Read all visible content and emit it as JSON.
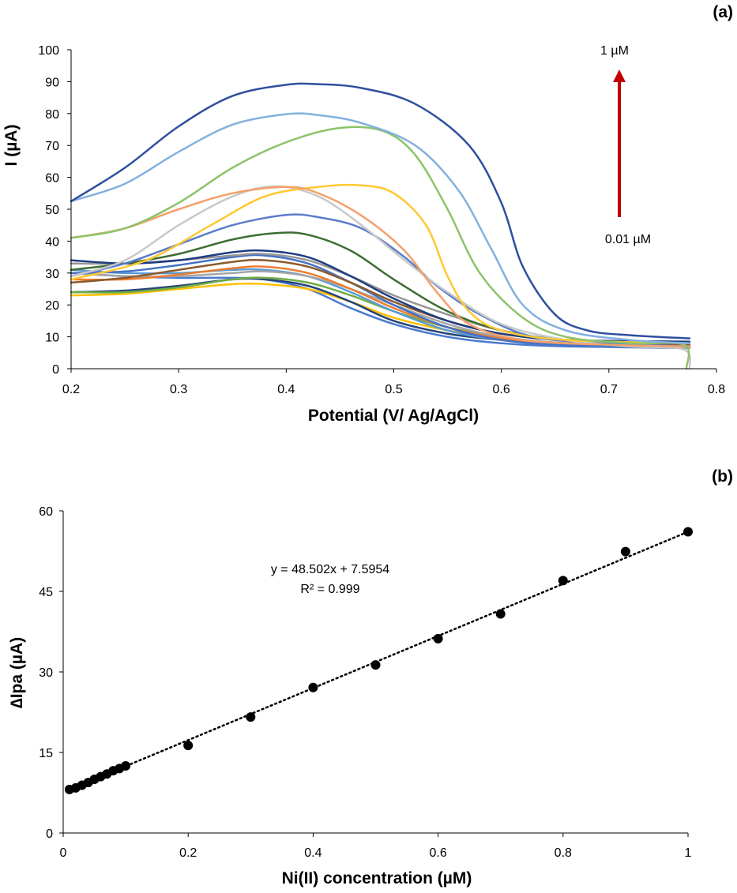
{
  "chart_data": [
    {
      "type": "line",
      "panel_label": "(a)",
      "xlabel": "Potential (V/ Ag/AgCl)",
      "ylabel": "I (µA)",
      "xlim": [
        0.2,
        0.8
      ],
      "ylim": [
        0,
        100
      ],
      "x_ticks": [
        "0.2",
        "0.3",
        "0.4",
        "0.5",
        "0.6",
        "0.7",
        "0.8"
      ],
      "y_ticks": [
        "0",
        "10",
        "20",
        "30",
        "40",
        "50",
        "60",
        "70",
        "80",
        "90",
        "100"
      ],
      "grid": false,
      "legend": "none",
      "arrow": {
        "color": "#c00000",
        "top_label": "1 µM",
        "bottom_label": "0.01 µM",
        "direction": "up"
      },
      "series": [
        {
          "color": "#2f4f9e",
          "points": [
            [
              0.2,
              52.5
            ],
            [
              0.25,
              63
            ],
            [
              0.3,
              76
            ],
            [
              0.35,
              85.5
            ],
            [
              0.4,
              89
            ],
            [
              0.43,
              89.2
            ],
            [
              0.47,
              88
            ],
            [
              0.52,
              83
            ],
            [
              0.57,
              70
            ],
            [
              0.6,
              52
            ],
            [
              0.62,
              32
            ],
            [
              0.65,
              17
            ],
            [
              0.68,
              12
            ],
            [
              0.72,
              10.5
            ],
            [
              0.775,
              9.5
            ]
          ]
        },
        {
          "color": "#82b1e0",
          "points": [
            [
              0.2,
              52.5
            ],
            [
              0.25,
              58
            ],
            [
              0.3,
              68
            ],
            [
              0.35,
              76.5
            ],
            [
              0.4,
              79.8
            ],
            [
              0.43,
              79.5
            ],
            [
              0.47,
              77
            ],
            [
              0.52,
              70
            ],
            [
              0.56,
              56
            ],
            [
              0.59,
              38
            ],
            [
              0.62,
              20
            ],
            [
              0.66,
              12
            ],
            [
              0.72,
              9
            ],
            [
              0.775,
              8
            ]
          ]
        },
        {
          "color": "#8cc36a",
          "points": [
            [
              0.2,
              41
            ],
            [
              0.25,
              44
            ],
            [
              0.3,
              52
            ],
            [
              0.35,
              63
            ],
            [
              0.4,
              71
            ],
            [
              0.45,
              75.5
            ],
            [
              0.49,
              74.5
            ],
            [
              0.52,
              67
            ],
            [
              0.55,
              50
            ],
            [
              0.58,
              30
            ],
            [
              0.62,
              16
            ],
            [
              0.66,
              10
            ],
            [
              0.72,
              8
            ],
            [
              0.77,
              7.5
            ],
            [
              0.772,
              0
            ]
          ]
        },
        {
          "color": "#f4a06a",
          "points": [
            [
              0.2,
              41
            ],
            [
              0.25,
              44
            ],
            [
              0.3,
              50
            ],
            [
              0.35,
              55
            ],
            [
              0.4,
              57
            ],
            [
              0.43,
              55
            ],
            [
              0.47,
              48
            ],
            [
              0.51,
              37
            ],
            [
              0.54,
              24
            ],
            [
              0.57,
              14
            ],
            [
              0.62,
              9
            ],
            [
              0.7,
              7.5
            ],
            [
              0.775,
              7
            ]
          ]
        },
        {
          "color": "#ffc832",
          "points": [
            [
              0.2,
              28
            ],
            [
              0.27,
              34
            ],
            [
              0.33,
              45
            ],
            [
              0.38,
              54
            ],
            [
              0.43,
              57
            ],
            [
              0.47,
              57.5
            ],
            [
              0.5,
              55
            ],
            [
              0.53,
              45
            ],
            [
              0.55,
              29
            ],
            [
              0.57,
              18
            ],
            [
              0.6,
              12
            ],
            [
              0.66,
              9
            ],
            [
              0.775,
              8
            ]
          ]
        },
        {
          "color": "#c8c8c8",
          "points": [
            [
              0.2,
              29
            ],
            [
              0.25,
              34
            ],
            [
              0.3,
              45
            ],
            [
              0.35,
              54
            ],
            [
              0.39,
              57.2
            ],
            [
              0.43,
              54
            ],
            [
              0.47,
              45
            ],
            [
              0.51,
              34
            ],
            [
              0.55,
              24
            ],
            [
              0.6,
              14
            ],
            [
              0.66,
              9
            ],
            [
              0.72,
              7
            ],
            [
              0.77,
              6
            ],
            [
              0.775,
              0
            ]
          ]
        },
        {
          "color": "#5b7dc8",
          "points": [
            [
              0.2,
              29
            ],
            [
              0.25,
              33
            ],
            [
              0.3,
              39
            ],
            [
              0.35,
              45
            ],
            [
              0.4,
              48.2
            ],
            [
              0.43,
              47.5
            ],
            [
              0.47,
              44
            ],
            [
              0.51,
              35
            ],
            [
              0.54,
              26
            ],
            [
              0.58,
              17
            ],
            [
              0.63,
              10
            ],
            [
              0.7,
              8
            ],
            [
              0.775,
              7
            ]
          ]
        },
        {
          "color": "#3c6e32",
          "points": [
            [
              0.2,
              31
            ],
            [
              0.25,
              33
            ],
            [
              0.3,
              36
            ],
            [
              0.35,
              40.5
            ],
            [
              0.39,
              42.5
            ],
            [
              0.42,
              42
            ],
            [
              0.46,
              37
            ],
            [
              0.5,
              28
            ],
            [
              0.55,
              18
            ],
            [
              0.6,
              12
            ],
            [
              0.66,
              9
            ],
            [
              0.775,
              8
            ]
          ]
        },
        {
          "color": "#1e3c82",
          "points": [
            [
              0.2,
              34
            ],
            [
              0.25,
              33
            ],
            [
              0.3,
              34
            ],
            [
              0.35,
              36.5
            ],
            [
              0.38,
              37
            ],
            [
              0.42,
              35
            ],
            [
              0.46,
              29
            ],
            [
              0.5,
              22
            ],
            [
              0.55,
              15
            ],
            [
              0.6,
              11
            ],
            [
              0.66,
              9
            ],
            [
              0.775,
              8.5
            ]
          ]
        },
        {
          "color": "#8b5a2b",
          "points": [
            [
              0.2,
              27
            ],
            [
              0.25,
              28.5
            ],
            [
              0.3,
              31
            ],
            [
              0.35,
              33.5
            ],
            [
              0.38,
              34
            ],
            [
              0.42,
              32
            ],
            [
              0.46,
              27
            ],
            [
              0.5,
              21
            ],
            [
              0.55,
              15
            ],
            [
              0.6,
              11
            ],
            [
              0.66,
              9
            ],
            [
              0.775,
              7.5
            ]
          ]
        },
        {
          "color": "#969696",
          "points": [
            [
              0.2,
              33
            ],
            [
              0.25,
              33
            ],
            [
              0.3,
              34
            ],
            [
              0.35,
              35.5
            ],
            [
              0.38,
              36
            ],
            [
              0.42,
              34
            ],
            [
              0.46,
              29
            ],
            [
              0.5,
              23
            ],
            [
              0.55,
              17
            ],
            [
              0.6,
              12
            ],
            [
              0.66,
              9
            ],
            [
              0.775,
              7
            ]
          ]
        },
        {
          "color": "#4472c4",
          "points": [
            [
              0.2,
              30
            ],
            [
              0.25,
              30.5
            ],
            [
              0.3,
              32.5
            ],
            [
              0.35,
              35
            ],
            [
              0.38,
              35.5
            ],
            [
              0.42,
              33
            ],
            [
              0.46,
              27
            ],
            [
              0.5,
              20
            ],
            [
              0.55,
              13
            ],
            [
              0.6,
              9
            ],
            [
              0.66,
              7.5
            ],
            [
              0.775,
              7
            ]
          ]
        },
        {
          "color": "#ed7d31",
          "points": [
            [
              0.2,
              28
            ],
            [
              0.25,
              28
            ],
            [
              0.3,
              29.5
            ],
            [
              0.35,
              31.5
            ],
            [
              0.38,
              32
            ],
            [
              0.42,
              30
            ],
            [
              0.46,
              25
            ],
            [
              0.5,
              19
            ],
            [
              0.55,
              13
            ],
            [
              0.6,
              9.5
            ],
            [
              0.66,
              8
            ],
            [
              0.775,
              7
            ]
          ]
        },
        {
          "color": "#a5a5a5",
          "points": [
            [
              0.2,
              30
            ],
            [
              0.25,
              29
            ],
            [
              0.3,
              29
            ],
            [
              0.35,
              30
            ],
            [
              0.38,
              30.5
            ],
            [
              0.42,
              29
            ],
            [
              0.46,
              25
            ],
            [
              0.5,
              20
            ],
            [
              0.55,
              14
            ],
            [
              0.6,
              10
            ],
            [
              0.66,
              8
            ],
            [
              0.775,
              6.5
            ]
          ]
        },
        {
          "color": "#5b9bd5",
          "points": [
            [
              0.2,
              31
            ],
            [
              0.25,
              30
            ],
            [
              0.3,
              30
            ],
            [
              0.35,
              31
            ],
            [
              0.38,
              31
            ],
            [
              0.42,
              29
            ],
            [
              0.46,
              24
            ],
            [
              0.5,
              18
            ],
            [
              0.55,
              12
            ],
            [
              0.6,
              9
            ],
            [
              0.66,
              7.5
            ],
            [
              0.775,
              6.5
            ]
          ]
        },
        {
          "color": "#70ad47",
          "points": [
            [
              0.2,
              24
            ],
            [
              0.25,
              24
            ],
            [
              0.3,
              25.5
            ],
            [
              0.35,
              28
            ],
            [
              0.38,
              28.5
            ],
            [
              0.42,
              27
            ],
            [
              0.46,
              23
            ],
            [
              0.5,
              18
            ],
            [
              0.55,
              13
            ],
            [
              0.6,
              10
            ],
            [
              0.66,
              8
            ],
            [
              0.775,
              7
            ]
          ]
        },
        {
          "color": "#264478",
          "points": [
            [
              0.2,
              24
            ],
            [
              0.25,
              24.5
            ],
            [
              0.3,
              26
            ],
            [
              0.35,
              28
            ],
            [
              0.38,
              28
            ],
            [
              0.42,
              26
            ],
            [
              0.46,
              21
            ],
            [
              0.5,
              15
            ],
            [
              0.55,
              11
            ],
            [
              0.6,
              9
            ],
            [
              0.66,
              7.5
            ],
            [
              0.775,
              6.5
            ]
          ]
        },
        {
          "color": "#ffc000",
          "points": [
            [
              0.2,
              23
            ],
            [
              0.25,
              23.5
            ],
            [
              0.3,
              25
            ],
            [
              0.35,
              26.5
            ],
            [
              0.38,
              26.5
            ],
            [
              0.42,
              25
            ],
            [
              0.46,
              21
            ],
            [
              0.5,
              16
            ],
            [
              0.55,
              12
            ],
            [
              0.6,
              9.5
            ],
            [
              0.66,
              8
            ],
            [
              0.775,
              7
            ]
          ]
        },
        {
          "color": "#4a7ad0",
          "points": [
            [
              0.2,
              30
            ],
            [
              0.25,
              29
            ],
            [
              0.3,
              28.5
            ],
            [
              0.35,
              28.5
            ],
            [
              0.38,
              28
            ],
            [
              0.42,
              25
            ],
            [
              0.46,
              19
            ],
            [
              0.5,
              14
            ],
            [
              0.55,
              10
            ],
            [
              0.6,
              8
            ],
            [
              0.66,
              7
            ],
            [
              0.775,
              6.5
            ]
          ]
        }
      ]
    },
    {
      "type": "scatter",
      "panel_label": "(b)",
      "xlabel": "Ni(II) concentration (µM)",
      "ylabel": "∆Ipa (µA)",
      "xlim": [
        0,
        1
      ],
      "ylim": [
        0,
        60
      ],
      "x_ticks": [
        "0",
        "0.2",
        "0.4",
        "0.6",
        "0.8",
        "1"
      ],
      "y_ticks": [
        "0",
        "15",
        "30",
        "45",
        "60"
      ],
      "grid": false,
      "legend": "none",
      "trendline": {
        "slope": 48.502,
        "intercept": 7.5954,
        "style": "dotted",
        "equation": "y = 48.502x + 7.5954",
        "r2": "R² = 0.999"
      },
      "points": [
        [
          0.01,
          8.1
        ],
        [
          0.02,
          8.4
        ],
        [
          0.03,
          8.9
        ],
        [
          0.04,
          9.4
        ],
        [
          0.05,
          10.0
        ],
        [
          0.06,
          10.5
        ],
        [
          0.07,
          11.0
        ],
        [
          0.08,
          11.6
        ],
        [
          0.09,
          12.0
        ],
        [
          0.1,
          12.5
        ],
        [
          0.2,
          16.3
        ],
        [
          0.3,
          21.6
        ],
        [
          0.4,
          27.1
        ],
        [
          0.5,
          31.3
        ],
        [
          0.6,
          36.2
        ],
        [
          0.7,
          40.8
        ],
        [
          0.8,
          47.0
        ],
        [
          0.9,
          52.4
        ],
        [
          1.0,
          56.1
        ]
      ]
    }
  ]
}
